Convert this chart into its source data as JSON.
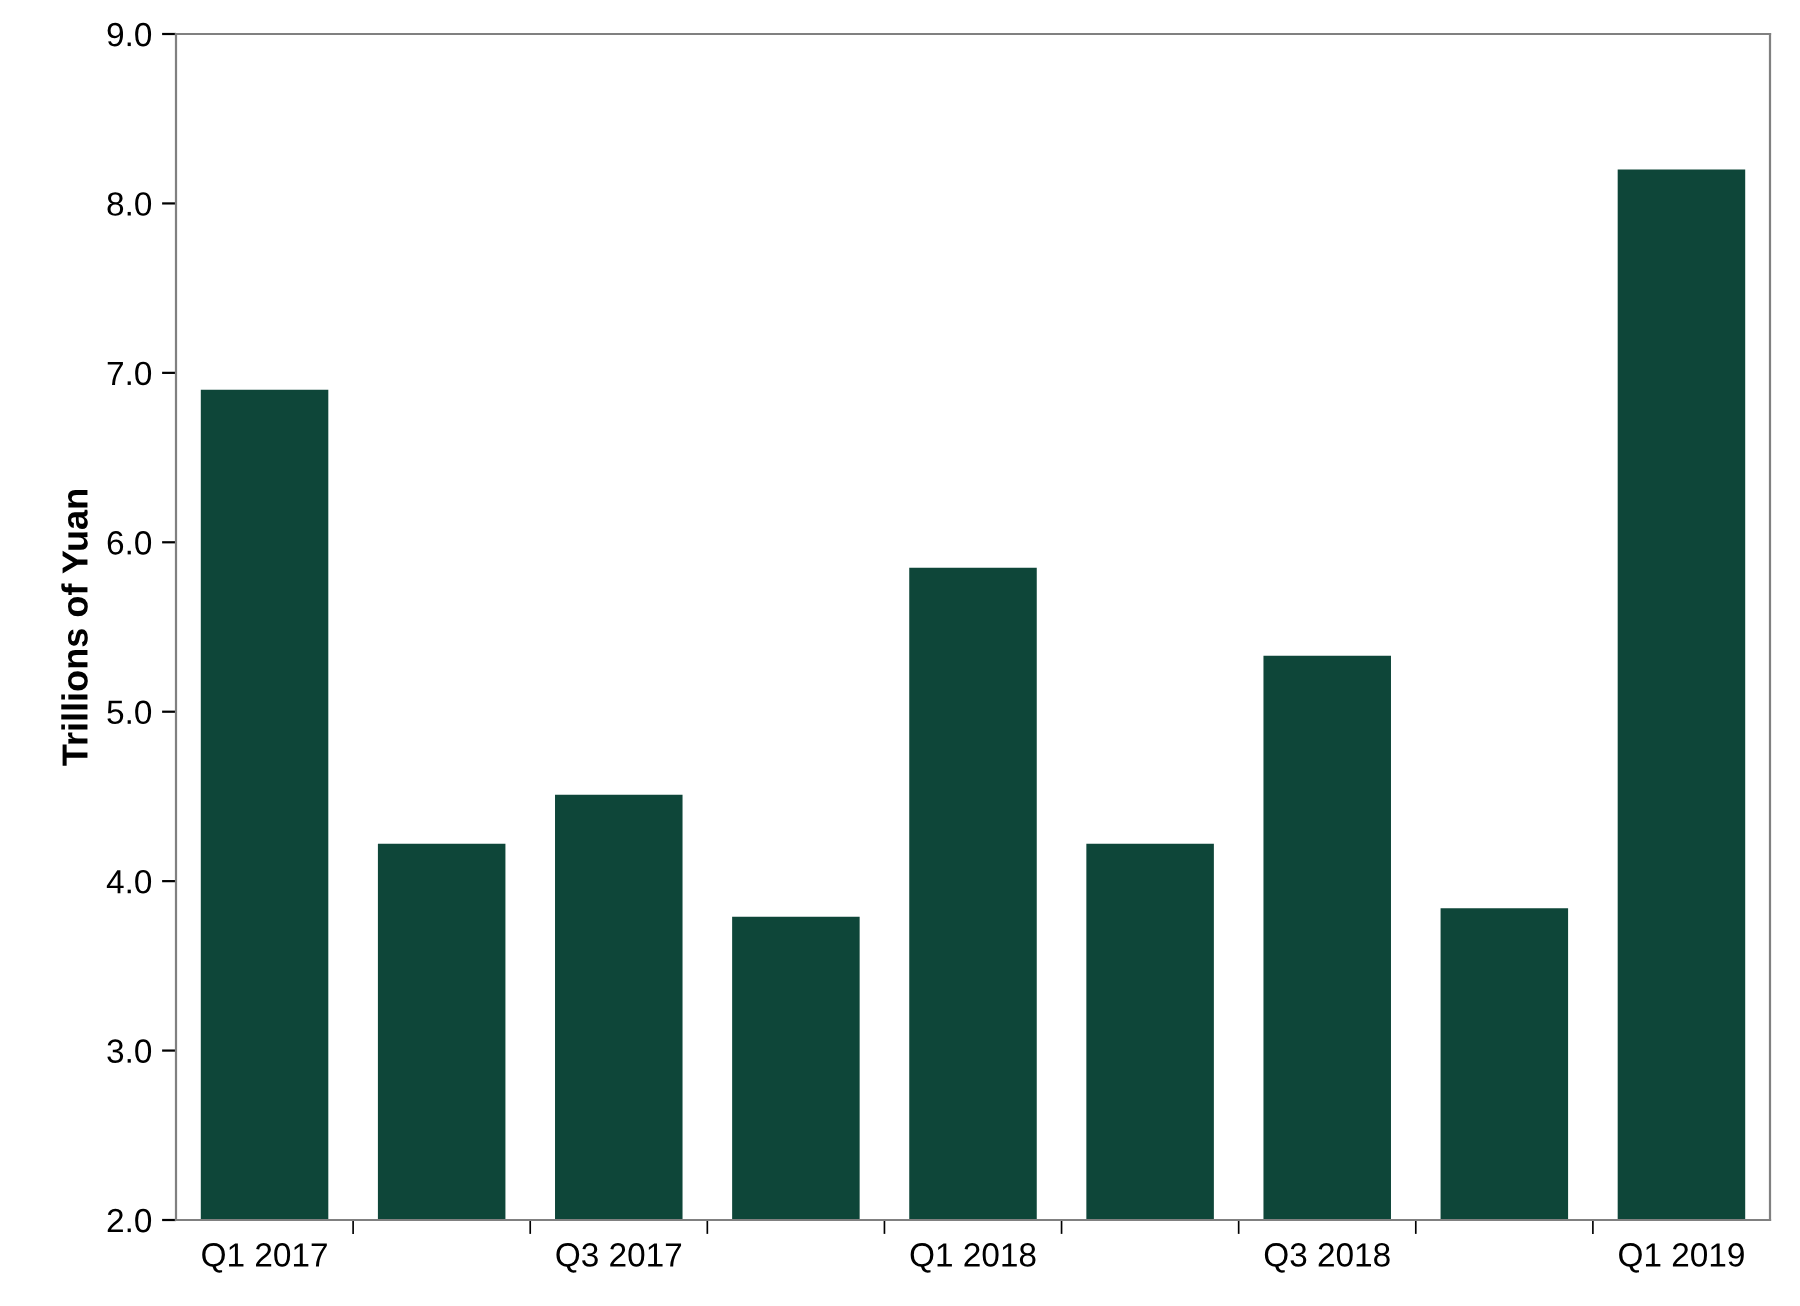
{
  "chart_data": {
    "type": "bar",
    "ylabel": "Trillions of Yuan",
    "categories": [
      "Q1 2017",
      null,
      "Q3 2017",
      null,
      "Q1 2018",
      null,
      "Q3 2018",
      null,
      "Q1 2019"
    ],
    "values": [
      6.9,
      4.22,
      4.51,
      3.79,
      5.85,
      4.22,
      5.33,
      3.84,
      8.2
    ],
    "color": "#0e4639",
    "ylim": [
      2,
      9
    ],
    "yticks": [
      {
        "value": 2,
        "label": "2.0"
      },
      {
        "value": 3,
        "label": "3.0"
      },
      {
        "value": 4,
        "label": "4.0"
      },
      {
        "value": 5,
        "label": "5.0"
      },
      {
        "value": 6,
        "label": "6.0"
      },
      {
        "value": 7,
        "label": "7.0"
      },
      {
        "value": 8,
        "label": "8.0"
      },
      {
        "value": 9,
        "label": "9.0"
      }
    ],
    "grid": false,
    "legend": false
  }
}
